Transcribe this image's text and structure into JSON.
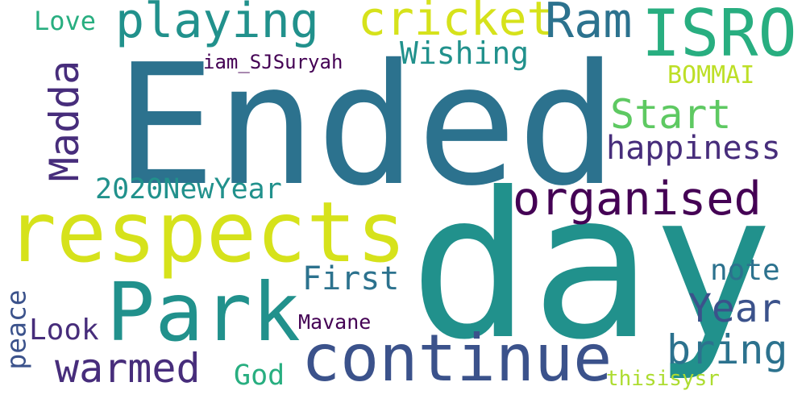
{
  "colors": {
    "dark_purple": "#440154",
    "indigo": "#472d7b",
    "slate_blue": "#3b528b",
    "steel_blue": "#2c728e",
    "teal": "#21918c",
    "green_teal": "#28ae80",
    "green": "#5ec962",
    "light_green": "#addc30",
    "yellow_green": "#bddf26",
    "yellow": "#d6e21b"
  },
  "words": {
    "ended": "Ended",
    "day": "day",
    "respects": "respects",
    "park": "Park",
    "continue": "continue",
    "organised": "organised",
    "isro": "ISRO",
    "playing": "playing",
    "cricket": "cricket",
    "ram": "Ram",
    "love": "Love",
    "wishing": "Wishing",
    "iam_sjsuryah": "iam_SJSuryah",
    "bommai": "BOMMAI",
    "start": "Start",
    "madda": "Madda",
    "happiness": "happiness",
    "newyear2020": "2020NewYear",
    "year": "Year",
    "note": "note",
    "first": "First",
    "peace": "peace",
    "look": "Look",
    "mavane": "Mavane",
    "bring": "bring",
    "warmed": "warmed",
    "god": "God",
    "thisisysr": "thisisysr"
  }
}
